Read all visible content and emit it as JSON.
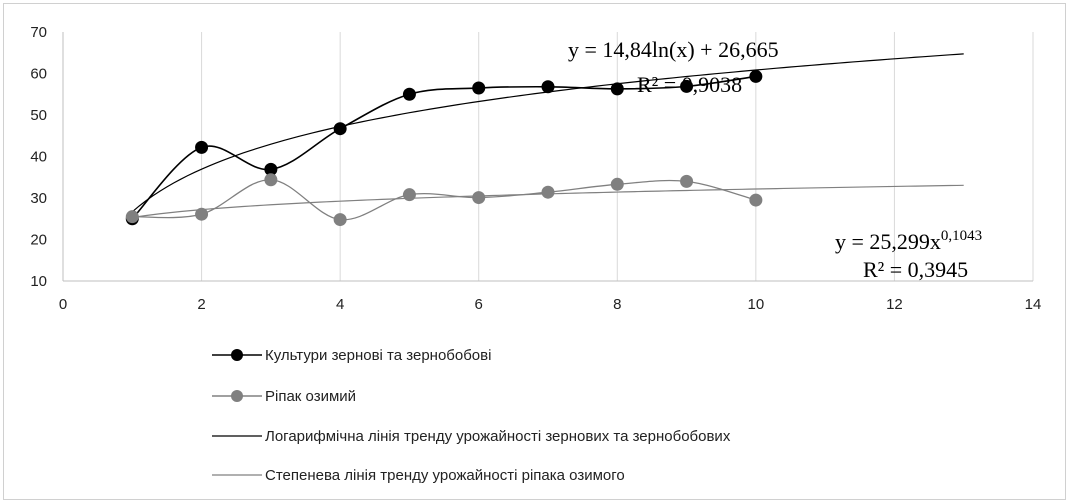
{
  "chart_data": {
    "type": "line",
    "xlim": [
      0,
      14
    ],
    "ylim": [
      10,
      70
    ],
    "xticks": [
      "0",
      "2",
      "4",
      "6",
      "8",
      "10",
      "12",
      "14"
    ],
    "yticks": [
      "10",
      "20",
      "30",
      "40",
      "50",
      "60",
      "70"
    ],
    "grid": "vertical",
    "legend_position": "bottom",
    "series": [
      {
        "name": "Культури зернові та зернобобові",
        "color": "#000000",
        "marker": "circle",
        "smooth": true,
        "x": [
          1,
          2,
          3,
          4,
          5,
          6,
          7,
          8,
          9,
          10
        ],
        "values": [
          25.0,
          42.2,
          36.9,
          46.7,
          55.0,
          56.5,
          56.8,
          56.3,
          56.9,
          59.3
        ]
      },
      {
        "name": "Ріпак озимий",
        "color": "#808080",
        "marker": "circle",
        "smooth": true,
        "x": [
          1,
          2,
          3,
          4,
          5,
          6,
          7,
          8,
          9,
          10
        ],
        "values": [
          25.5,
          26.1,
          34.4,
          24.8,
          30.8,
          30.1,
          31.4,
          33.3,
          34.0,
          29.5
        ]
      }
    ],
    "trendlines": [
      {
        "name": "Логарифмічна лінія тренду урожайності зернових та зернобобових",
        "type": "logarithmic",
        "a": 14.84,
        "b": 26.665,
        "x_range": [
          1,
          13
        ],
        "color": "#000000",
        "equation_main": "y = 14,84ln(x) + 26,665",
        "equation_r2": "R² = 0,9038"
      },
      {
        "name": "Степенева лінія тренду урожайності ріпака озимого",
        "type": "power",
        "a": 25.299,
        "b": 0.1043,
        "x_range": [
          1,
          13
        ],
        "color": "#808080",
        "equation_main": "y = 25,299x",
        "equation_exponent": "0,1043",
        "equation_r2": "R² = 0,3945"
      }
    ]
  }
}
